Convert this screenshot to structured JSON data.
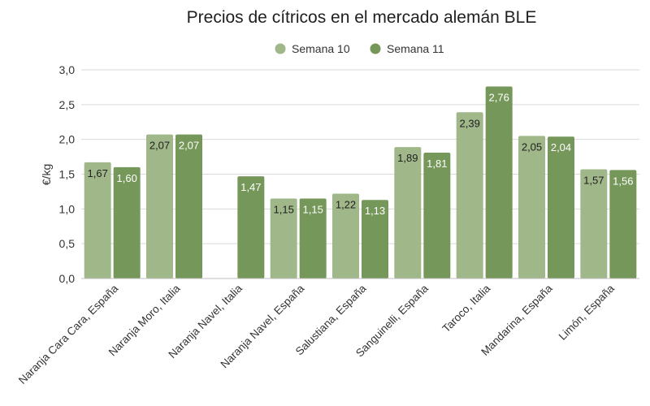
{
  "chart_data": {
    "type": "bar",
    "title": "Precios de cítricos en el mercado alemán BLE",
    "ylabel": "€/kg",
    "ylim": [
      0,
      3.0
    ],
    "yticks": [
      "0,0",
      "0,5",
      "1,0",
      "1,5",
      "2,0",
      "2,5",
      "3,0"
    ],
    "ytick_values": [
      0,
      0.5,
      1.0,
      1.5,
      2.0,
      2.5,
      3.0
    ],
    "grid": true,
    "legend_position": "top-center",
    "categories": [
      "Naranja Cara Cara, España",
      "Naranja Moro, Italia",
      "Naranja Navel, Italia",
      "Naranja Navel, España",
      "Salustiana, España",
      "Sanguinelli, España",
      "Taroco, Italia",
      "Mandarina, España",
      "Limón, España"
    ],
    "series": [
      {
        "name": "Semana 10",
        "color": "#a0b78a",
        "label_color": "#1f1f1f",
        "values": [
          1.67,
          2.07,
          null,
          1.15,
          1.22,
          1.89,
          2.39,
          2.05,
          1.57
        ],
        "labels": [
          "1,67",
          "2,07",
          "",
          "1,15",
          "1,22",
          "1,89",
          "2,39",
          "2,05",
          "1,57"
        ]
      },
      {
        "name": "Semana 11",
        "color": "#76975a",
        "label_color": "#ffffff",
        "values": [
          1.6,
          2.07,
          1.47,
          1.15,
          1.13,
          1.81,
          2.76,
          2.04,
          1.56
        ],
        "labels": [
          "1,60",
          "2,07",
          "1,47",
          "1,15",
          "1,13",
          "1,81",
          "2,76",
          "2,04",
          "1,56"
        ]
      }
    ]
  }
}
